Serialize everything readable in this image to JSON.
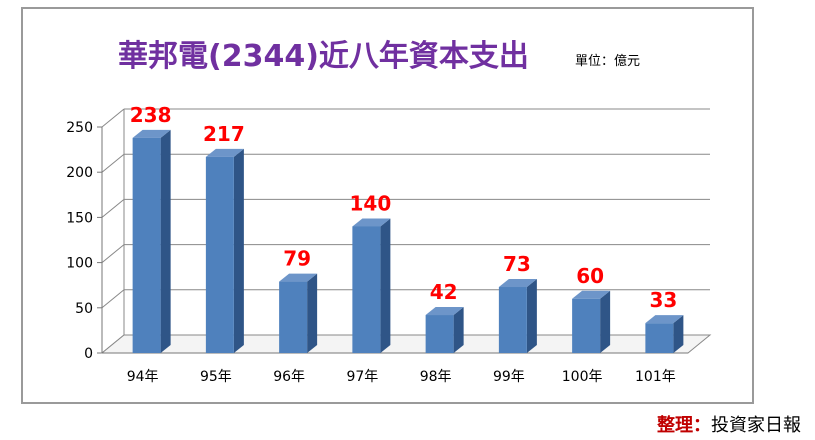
{
  "chart_data": {
    "type": "bar",
    "title": "華邦電(2344)近八年資本支出",
    "unit": "單位：億元",
    "categories": [
      "94年",
      "95年",
      "96年",
      "97年",
      "98年",
      "99年",
      "100年",
      "101年"
    ],
    "values": [
      238,
      217,
      79,
      140,
      42,
      73,
      60,
      33
    ],
    "data_labels": [
      "238",
      "217",
      "79",
      "140",
      "42",
      "73",
      "60",
      "33"
    ],
    "ylim": [
      0,
      250
    ],
    "yticks": [
      0,
      50,
      100,
      150,
      200,
      250
    ],
    "ytick_labels": [
      "0",
      "50",
      "100",
      "150",
      "200",
      "250"
    ],
    "grid": true,
    "bar_color": "#4f81bd",
    "data_label_color": "#ff0000",
    "title_color": "#7030a0"
  },
  "source": {
    "label": "整理：",
    "org": "投資家日報"
  }
}
